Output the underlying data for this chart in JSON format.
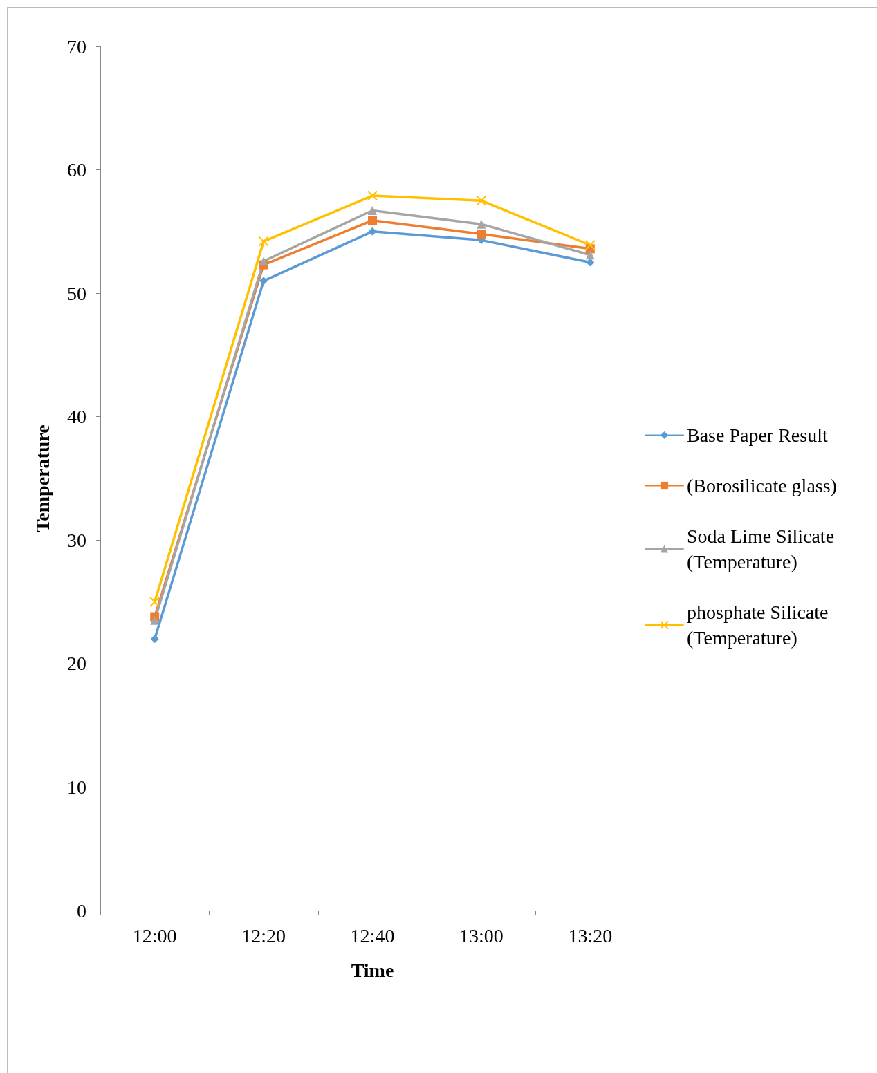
{
  "chart_data": {
    "type": "line",
    "xlabel": "Time",
    "ylabel": "Temperature",
    "categories": [
      "12:00",
      "12:20",
      "12:40",
      "13:00",
      "13:20"
    ],
    "series": [
      {
        "name": "Base Paper Result",
        "color": "#5b9bd5",
        "marker": "diamond",
        "values": [
          22.0,
          51.0,
          55.0,
          54.3,
          52.5
        ]
      },
      {
        "name": "(Borosilicate glass)",
        "color": "#ed7d31",
        "marker": "square",
        "values": [
          23.8,
          52.3,
          55.9,
          54.8,
          53.6
        ]
      },
      {
        "name": "Soda Lime Silicate (Temperature)",
        "color": "#a5a5a5",
        "marker": "triangle",
        "values": [
          23.5,
          52.6,
          56.7,
          55.6,
          53.1
        ]
      },
      {
        "name": "phosphate Silicate (Temperature)",
        "color": "#ffc000",
        "marker": "cross",
        "values": [
          25.0,
          54.2,
          57.9,
          57.5,
          53.9
        ]
      }
    ],
    "ylim": [
      0,
      70
    ],
    "yticks": [
      0,
      10,
      20,
      30,
      40,
      50,
      60,
      70
    ],
    "grid": false,
    "legend": "right",
    "line_style": "solid"
  }
}
